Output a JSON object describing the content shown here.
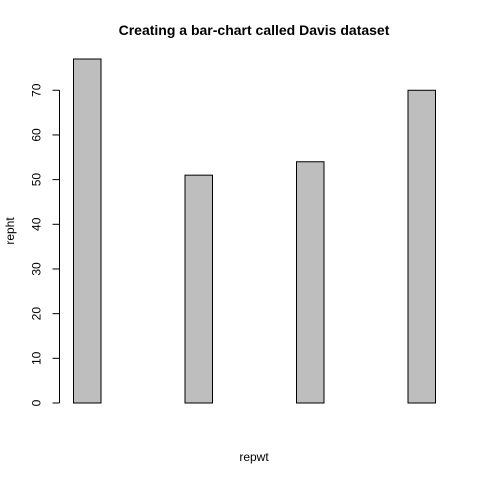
{
  "chart_data": {
    "type": "bar",
    "title": "Creating a bar-chart called Davis dataset",
    "xlabel": "repwt",
    "ylabel": "repht",
    "categories": [
      "",
      "",
      "",
      ""
    ],
    "values": [
      77,
      51,
      54,
      70
    ],
    "ylim": [
      0,
      77
    ],
    "yticks": [
      0,
      10,
      20,
      30,
      40,
      50,
      60,
      70
    ],
    "grid": false,
    "legend": "none",
    "bar_fill": "#bebebe",
    "bar_stroke": "#000000"
  }
}
